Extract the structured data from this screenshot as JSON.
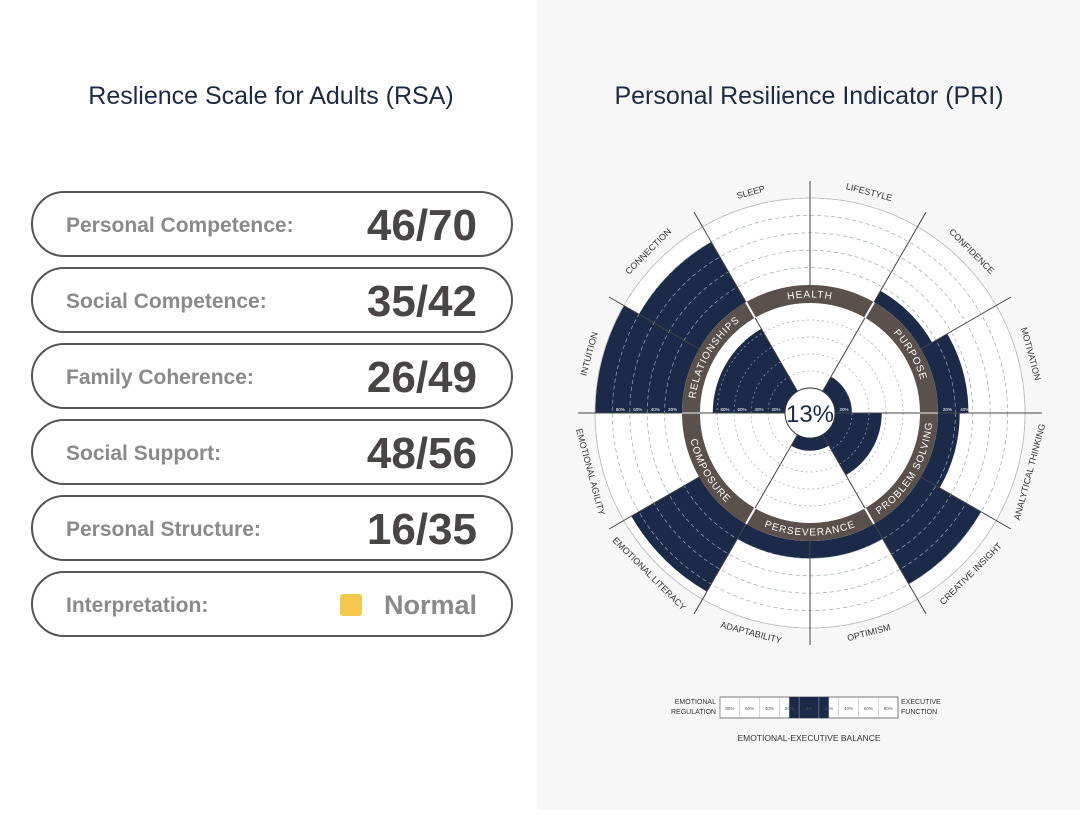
{
  "left": {
    "title": "Reslience Scale for Adults (RSA)",
    "rows": [
      {
        "label": "Personal Competence:",
        "score": "46/70"
      },
      {
        "label": "Social Competence:",
        "score": "35/42"
      },
      {
        "label": "Family Coherence:",
        "score": "26/49"
      },
      {
        "label": "Social Support:",
        "score": "48/56"
      },
      {
        "label": "Personal Structure:",
        "score": "16/35"
      }
    ],
    "interpretation": {
      "label": "Interpretation:",
      "value": "Normal",
      "color": "#f2c94c"
    }
  },
  "right": {
    "title": "Personal Resilience Indicator (PRI)",
    "center": "13%",
    "inner": [
      {
        "label": "HEALTH",
        "level": 0
      },
      {
        "label": "PURPOSE",
        "level": 20
      },
      {
        "label": "PROBLEM SOLVING",
        "level": 55
      },
      {
        "label": "PERSEVERANCE",
        "level": 15
      },
      {
        "label": "COMPOSURE",
        "level": 0
      },
      {
        "label": "RELATIONSHIPS",
        "level": 85
      }
    ],
    "outer": [
      {
        "label": "LIFESTYLE",
        "level": 0
      },
      {
        "label": "CONFIDENCE",
        "level": 15
      },
      {
        "label": "MOTIVATION",
        "level": 35
      },
      {
        "label": "ANALYTICAL THINKING",
        "level": 25
      },
      {
        "label": "CREATIVE INSIGHT",
        "level": 80
      },
      {
        "label": "OPTIMISM",
        "level": 20
      },
      {
        "label": "ADAPTABILITY",
        "level": 20
      },
      {
        "label": "EMOTIONAL LITERACY",
        "level": 90
      },
      {
        "label": "EMOTIONAL AGILITY",
        "level": 0
      },
      {
        "label": "INTUITION",
        "level": 100
      },
      {
        "label": "CONNECTION",
        "level": 80
      },
      {
        "label": "SLEEP",
        "level": 0
      }
    ],
    "ring_ticks": [
      "20%",
      "40%",
      "60%",
      "80%"
    ],
    "balance": {
      "left": [
        "EMOTIONAL",
        "REGULATION"
      ],
      "right": [
        "EXECUTIVE",
        "FUNCTION"
      ],
      "caption": "EMOTIONAL-EXECUTIVE BALANCE",
      "ticks": [
        "80%",
        "60%",
        "40%",
        "20%",
        "0%",
        "20%",
        "40%",
        "60%",
        "80%"
      ],
      "fill": [
        -20,
        20
      ]
    }
  }
}
